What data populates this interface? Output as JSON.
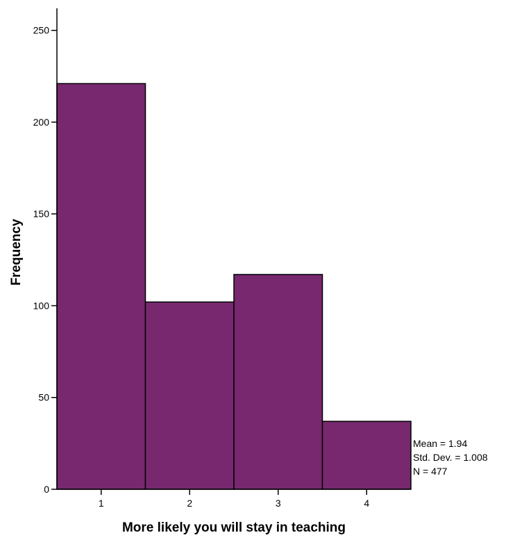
{
  "chart_data": {
    "type": "bar",
    "subtype": "histogram",
    "categories": [
      "1",
      "2",
      "3",
      "4"
    ],
    "values": [
      221,
      102,
      117,
      37
    ],
    "xlabel": "More likely you will stay in teaching",
    "ylabel": "Frequency",
    "ylim": [
      0,
      262
    ],
    "yticks": [
      0,
      50,
      100,
      150,
      200,
      250
    ],
    "grid": false,
    "bar_color": "#78286F",
    "bar_edge_color": "#000000",
    "stats": {
      "mean_label": "Mean = 1.94",
      "std_label": "Std. Dev. = 1.008",
      "n_label": "N = 477"
    }
  }
}
